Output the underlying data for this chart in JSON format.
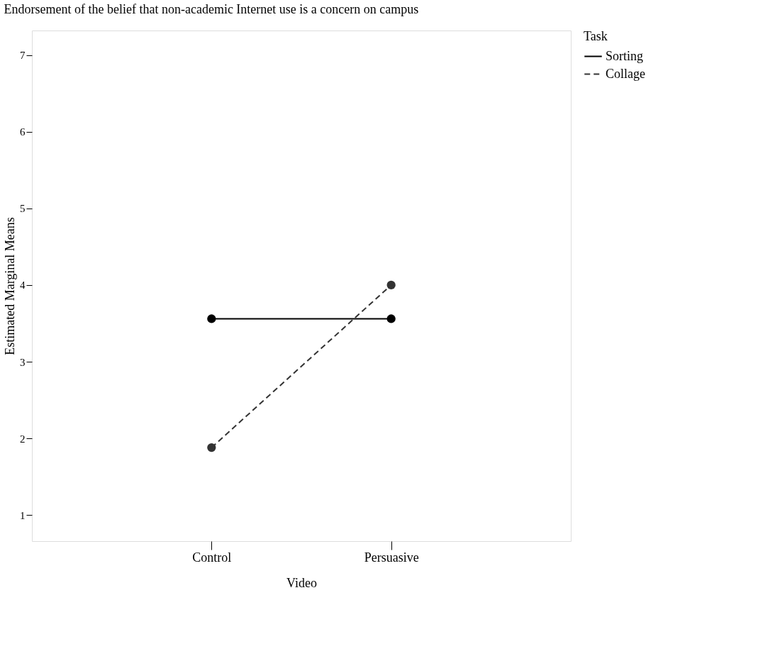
{
  "chart_data": {
    "type": "line",
    "title": "Endorsement of the belief that non-academic Internet use is a concern on campus",
    "xlabel": "Video",
    "ylabel": "Estimated Marginal Means",
    "legend_title": "Task",
    "categories": [
      "Control",
      "Persuasive"
    ],
    "series": [
      {
        "name": "Sorting",
        "color": "#000000",
        "line_style": "solid",
        "values": [
          3.56,
          3.56
        ]
      },
      {
        "name": "Collage",
        "color": "#333333",
        "line_style": "dashed",
        "values": [
          1.88,
          4.0
        ]
      }
    ],
    "ylim": [
      0.66,
      7.32
    ],
    "yticks": [
      1,
      2,
      3,
      4,
      5,
      6,
      7
    ],
    "grid": false,
    "legend": "top right",
    "marker": "circle"
  }
}
